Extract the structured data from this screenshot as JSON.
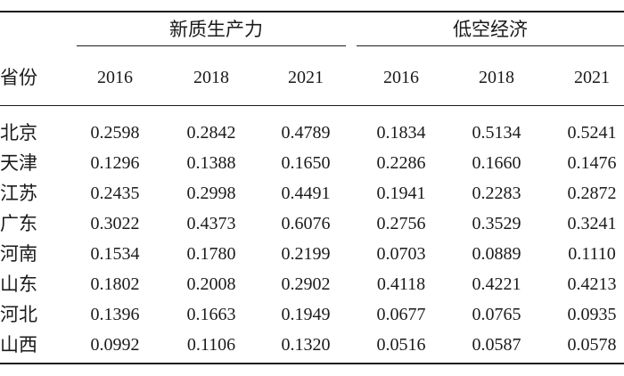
{
  "table": {
    "groups": [
      "新质生产力",
      "低空经济"
    ],
    "row_header": "省份",
    "years": [
      "2016",
      "2018",
      "2021",
      "2016",
      "2018",
      "2021"
    ],
    "rows": [
      {
        "province": "北京",
        "values": [
          "0.2598",
          "0.2842",
          "0.4789",
          "0.1834",
          "0.5134",
          "0.5241"
        ]
      },
      {
        "province": "天津",
        "values": [
          "0.1296",
          "0.1388",
          "0.1650",
          "0.2286",
          "0.1660",
          "0.1476"
        ]
      },
      {
        "province": "江苏",
        "values": [
          "0.2435",
          "0.2998",
          "0.4491",
          "0.1941",
          "0.2283",
          "0.2872"
        ]
      },
      {
        "province": "广东",
        "values": [
          "0.3022",
          "0.4373",
          "0.6076",
          "0.2756",
          "0.3529",
          "0.3241"
        ]
      },
      {
        "province": "河南",
        "values": [
          "0.1534",
          "0.1780",
          "0.2199",
          "0.0703",
          "0.0889",
          "0.1110"
        ]
      },
      {
        "province": "山东",
        "values": [
          "0.1802",
          "0.2008",
          "0.2902",
          "0.4118",
          "0.4221",
          "0.4213"
        ]
      },
      {
        "province": "河北",
        "values": [
          "0.1396",
          "0.1663",
          "0.1949",
          "0.0677",
          "0.0765",
          "0.0935"
        ]
      },
      {
        "province": "山西",
        "values": [
          "0.0992",
          "0.1106",
          "0.1320",
          "0.0516",
          "0.0587",
          "0.0578"
        ]
      }
    ]
  }
}
